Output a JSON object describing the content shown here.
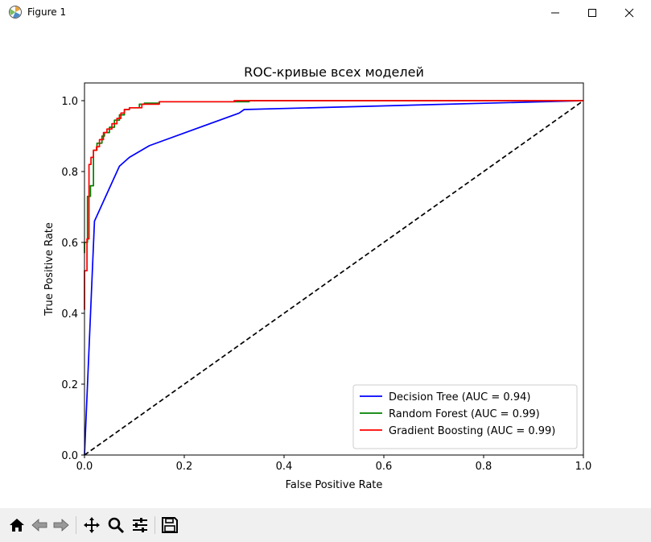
{
  "window": {
    "title": "Figure 1",
    "app_icon": "matplotlib-icon",
    "controls": [
      "minimize-icon",
      "maximize-icon",
      "close-icon"
    ]
  },
  "toolbar": {
    "buttons": [
      {
        "name": "home-button",
        "icon": "home-icon",
        "tooltip": ""
      },
      {
        "name": "back-button",
        "icon": "arrow-left-icon"
      },
      {
        "name": "forward-button",
        "icon": "arrow-right-icon"
      },
      {
        "name": "pan-button",
        "icon": "move-icon"
      },
      {
        "name": "zoom-button",
        "icon": "magnifier-icon"
      },
      {
        "name": "configure-subplots-button",
        "icon": "sliders-icon"
      },
      {
        "name": "save-button",
        "icon": "floppy-disk-icon"
      }
    ]
  },
  "chart_data": {
    "type": "line",
    "title": "ROC-кривые всех моделей",
    "xlabel": "False Positive Rate",
    "ylabel": "True Positive Rate",
    "xlim": [
      0.0,
      1.0
    ],
    "ylim": [
      0.0,
      1.05
    ],
    "xticks": [
      "0.0",
      "0.2",
      "0.4",
      "0.6",
      "0.8",
      "1.0"
    ],
    "yticks": [
      "0.0",
      "0.2",
      "0.4",
      "0.6",
      "0.8",
      "1.0"
    ],
    "grid": false,
    "legend_position": "lower-right",
    "series": [
      {
        "name": "Decision Tree (AUC = 0.94)",
        "color": "#0000ff",
        "x": [
          0.0,
          0.02,
          0.07,
          0.09,
          0.13,
          0.31,
          0.32,
          1.0
        ],
        "y": [
          0.0,
          0.66,
          0.815,
          0.84,
          0.873,
          0.965,
          0.975,
          1.0
        ]
      },
      {
        "name": "Random Forest (AUC = 0.99)",
        "color": "#008000",
        "x": [
          0.0,
          0.0,
          0.006,
          0.006,
          0.012,
          0.012,
          0.018,
          0.018,
          0.025,
          0.025,
          0.035,
          0.035,
          0.04,
          0.04,
          0.05,
          0.05,
          0.06,
          0.06,
          0.07,
          0.07,
          0.08,
          0.08,
          0.09,
          0.09,
          0.11,
          0.11,
          0.12,
          0.12,
          0.15,
          0.15,
          0.33,
          0.33,
          1.0
        ],
        "y": [
          0.57,
          0.6,
          0.6,
          0.73,
          0.73,
          0.76,
          0.76,
          0.86,
          0.86,
          0.88,
          0.88,
          0.9,
          0.9,
          0.91,
          0.91,
          0.925,
          0.925,
          0.945,
          0.945,
          0.96,
          0.96,
          0.975,
          0.975,
          0.98,
          0.98,
          0.99,
          0.99,
          0.993,
          0.993,
          0.997,
          0.997,
          1.0,
          1.0
        ]
      },
      {
        "name": "Gradient Boosting (AUC = 0.99)",
        "color": "#ff0000",
        "x": [
          0.0,
          0.0,
          0.005,
          0.005,
          0.009,
          0.009,
          0.013,
          0.013,
          0.018,
          0.018,
          0.024,
          0.024,
          0.03,
          0.03,
          0.038,
          0.038,
          0.045,
          0.045,
          0.055,
          0.055,
          0.065,
          0.065,
          0.073,
          0.073,
          0.08,
          0.08,
          0.09,
          0.09,
          0.115,
          0.115,
          0.15,
          0.15,
          0.3,
          0.3,
          1.0
        ],
        "y": [
          0.41,
          0.52,
          0.52,
          0.61,
          0.61,
          0.82,
          0.82,
          0.84,
          0.84,
          0.86,
          0.86,
          0.87,
          0.87,
          0.89,
          0.89,
          0.91,
          0.91,
          0.92,
          0.92,
          0.935,
          0.935,
          0.95,
          0.95,
          0.965,
          0.965,
          0.975,
          0.975,
          0.98,
          0.98,
          0.99,
          0.99,
          0.997,
          0.997,
          1.0,
          1.0
        ]
      },
      {
        "name": "",
        "color": "#000000",
        "dashed": true,
        "x": [
          0.0,
          1.0
        ],
        "y": [
          0.0,
          1.0
        ]
      }
    ]
  }
}
